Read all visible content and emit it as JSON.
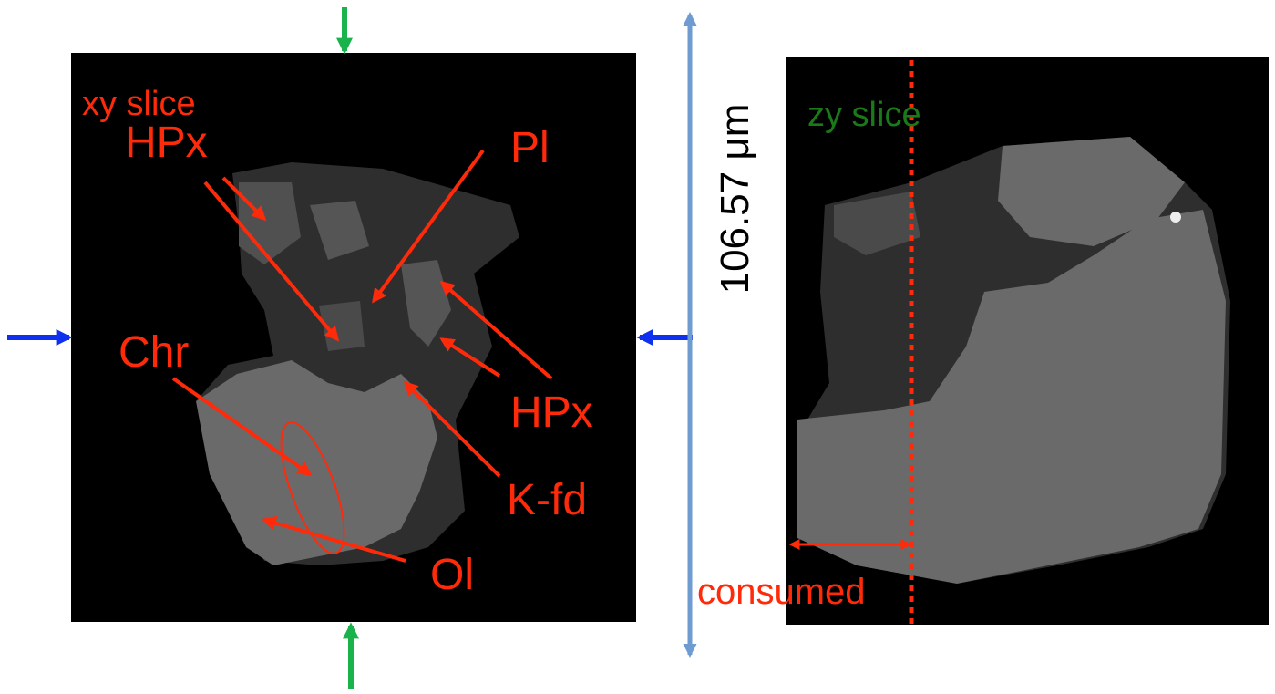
{
  "left_panel": {
    "title": "xy slice",
    "labels": [
      "HPx",
      "Pl",
      "Chr",
      "HPx",
      "K-fd",
      "Ol"
    ]
  },
  "scale_label": "106.57 μm",
  "right_panel": {
    "title": "zy slice",
    "label": "consumed"
  }
}
